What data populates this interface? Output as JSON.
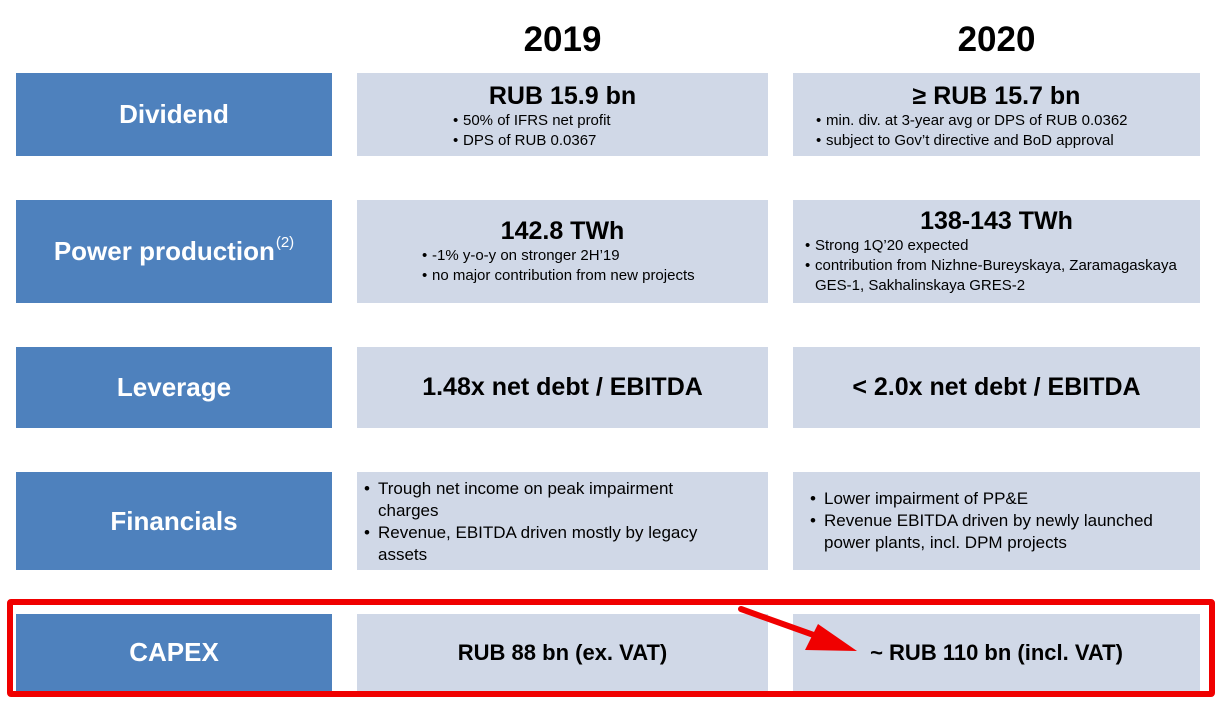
{
  "years": [
    "2019",
    "2020"
  ],
  "rows": [
    {
      "label": "Dividend",
      "y2019": {
        "head": "RUB 15.9 bn",
        "bullets": [
          "50% of IFRS net profit",
          "DPS of RUB 0.0367"
        ]
      },
      "y2020": {
        "head": "≥ RUB 15.7 bn",
        "bullets": [
          "min. div. at 3-year avg or DPS of RUB 0.0362",
          "subject to Gov’t directive and BoD approval"
        ]
      }
    },
    {
      "label": "Power production",
      "label_sup": "(2)",
      "y2019": {
        "head": "142.8 TWh",
        "bullets": [
          "-1% y-o-y on stronger 2H’19",
          "no major contribution from new projects"
        ]
      },
      "y2020": {
        "head": "138-143 TWh",
        "bullets": [
          "Strong 1Q’20 expected",
          "contribution from Nizhne-Bureyskaya, Zaramagaskaya GES-1, Sakhalinskaya GRES-2"
        ]
      }
    },
    {
      "label": "Leverage",
      "y2019": {
        "text": "1.48x net debt / EBITDA"
      },
      "y2020": {
        "text": "< 2.0x net debt / EBITDA"
      }
    },
    {
      "label": "Financials",
      "y2019": {
        "bullets": [
          "Trough net income on peak impairment charges",
          "Revenue, EBITDA driven mostly by legacy assets"
        ]
      },
      "y2020": {
        "bullets": [
          "Lower impairment of PP&E",
          "Revenue EBITDA driven by newly launched power plants, incl. DPM projects"
        ]
      }
    },
    {
      "label": "CAPEX",
      "y2019": {
        "text": "RUB 88 bn (ex. VAT)"
      },
      "y2020": {
        "text": "~ RUB 110 bn (incl. VAT)"
      }
    }
  ],
  "colors": {
    "label_bg": "#4e81bd",
    "cell_bg": "#d0d8e7",
    "highlight": "#f00000"
  }
}
